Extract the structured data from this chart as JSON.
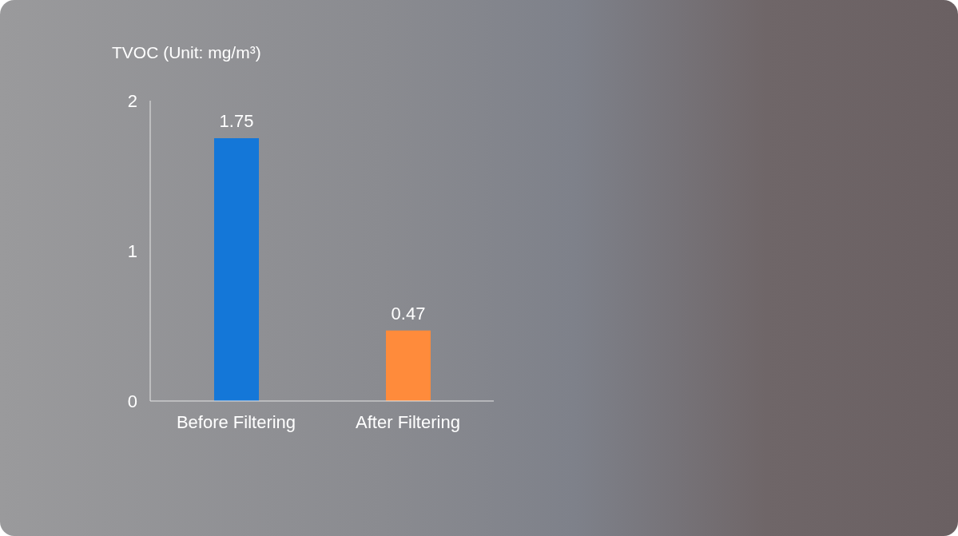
{
  "chart_data": {
    "type": "bar",
    "ylabel": "TVOC (Unit: mg/m³)",
    "categories": [
      "Before Filtering",
      "After Filtering"
    ],
    "values": [
      1.75,
      0.47
    ],
    "colors": [
      "#1477d8",
      "#ff8b3b"
    ],
    "ylim": [
      0,
      2
    ],
    "yticks": [
      0,
      1,
      2
    ],
    "data_labels": true
  }
}
